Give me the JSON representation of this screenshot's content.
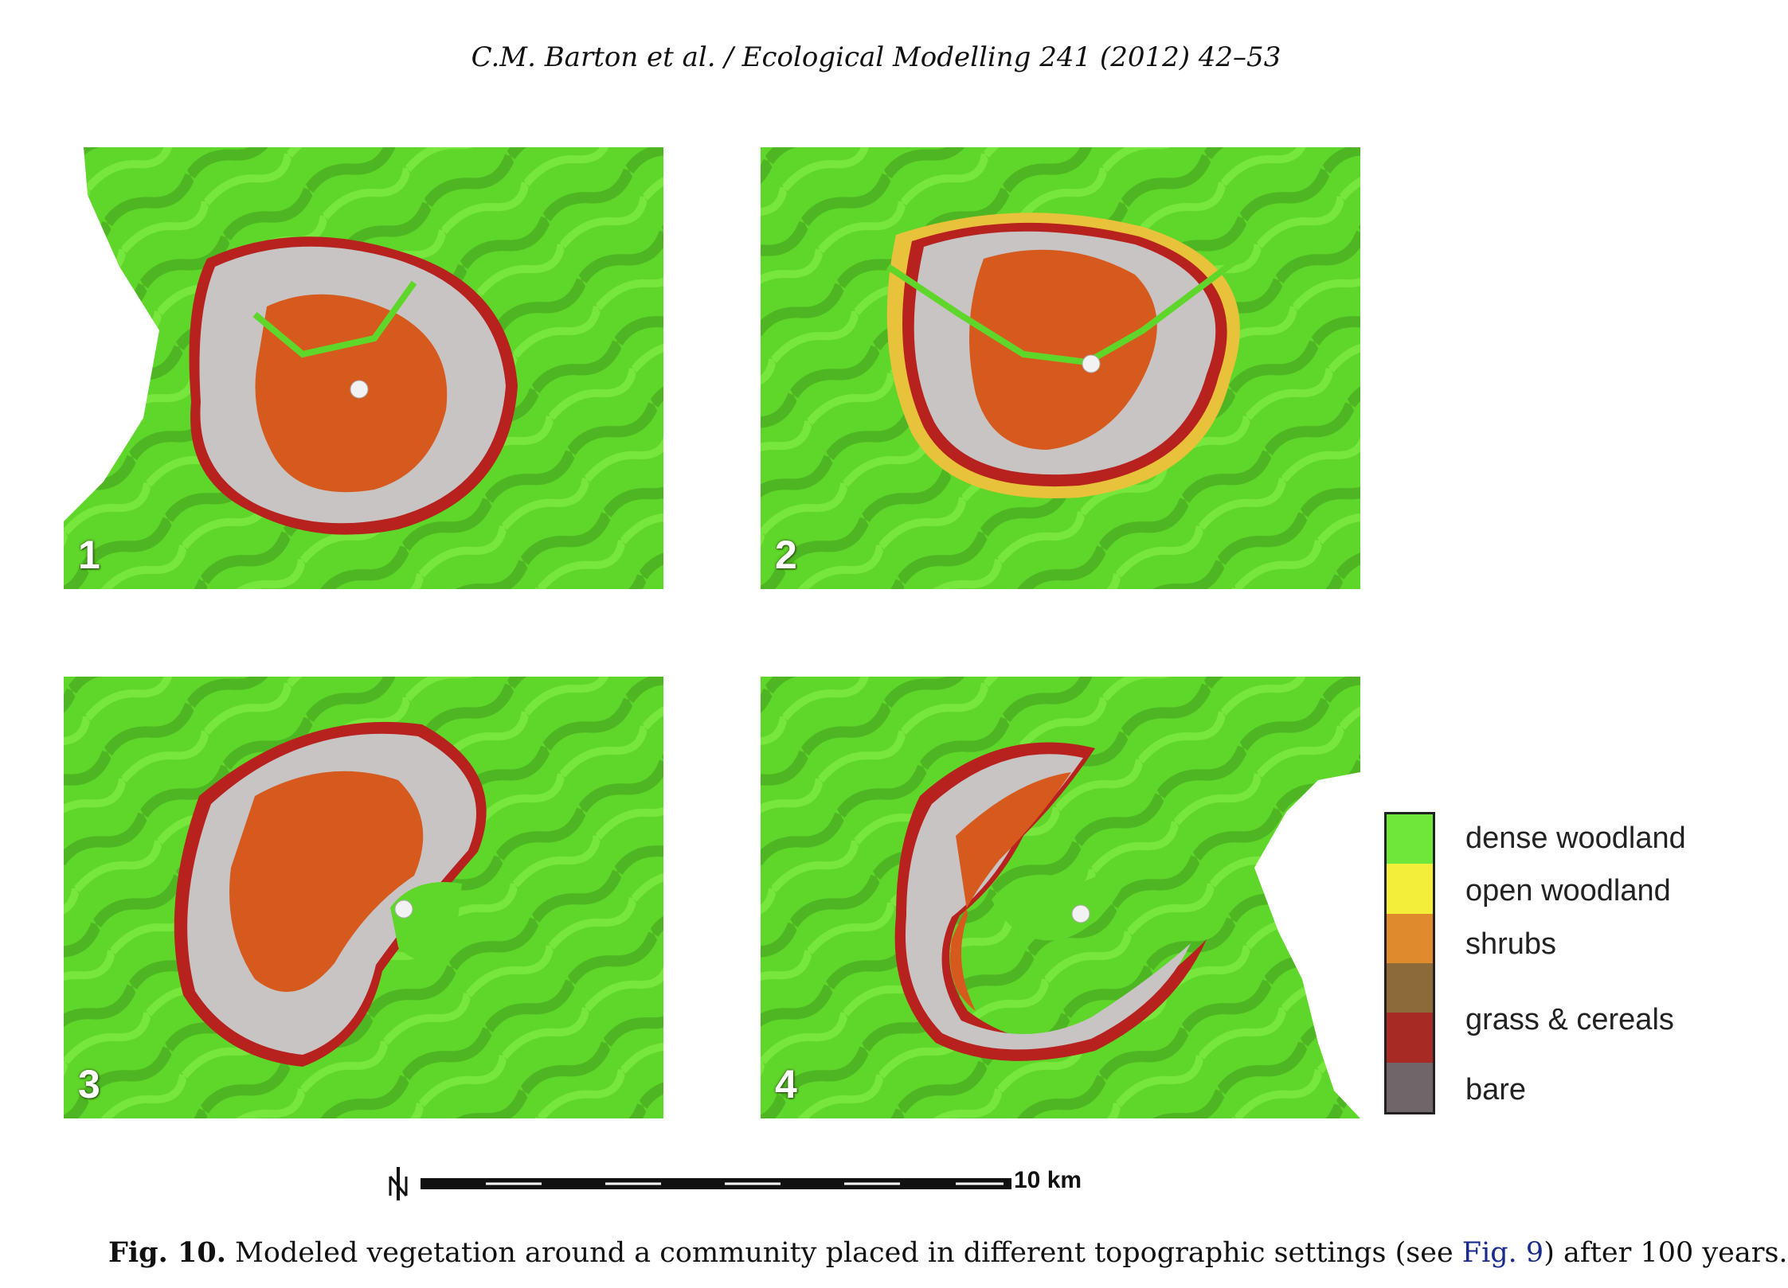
{
  "header": {
    "running_head": "C.M. Barton et al. / Ecological Modelling 241 (2012) 42–53"
  },
  "panels": [
    {
      "label": "1"
    },
    {
      "label": "2"
    },
    {
      "label": "3"
    },
    {
      "label": "4"
    }
  ],
  "legend": {
    "items": [
      {
        "label": "dense woodland",
        "color": "#6fe63a"
      },
      {
        "label": "open woodland",
        "color": "#f2ee3a"
      },
      {
        "label": "shrubs",
        "color": "#e08a2e"
      },
      {
        "label": "grass & cereals",
        "color": "#8c6a3a"
      },
      {
        "label": "bare",
        "color": "#6e6668"
      }
    ],
    "extra_swatch_color": "#a82a24"
  },
  "scale": {
    "label": "10 km",
    "north_symbol": "N"
  },
  "caption": {
    "fig_label": "Fig. 10.",
    "text_before": " Modeled vegetation around a community placed in different topographic settings (see ",
    "figref": "Fig. 9",
    "text_after": ") after 100 years."
  },
  "colors": {
    "woodland": "#5fd62a",
    "woodland_dark": "#3e9a1c",
    "shrub_orange": "#d65a1e",
    "bare_grey": "#c8c4c4",
    "grass_red": "#b8221e",
    "open_yellow": "#e8c23a",
    "village_marker": "#f2f2f2"
  }
}
